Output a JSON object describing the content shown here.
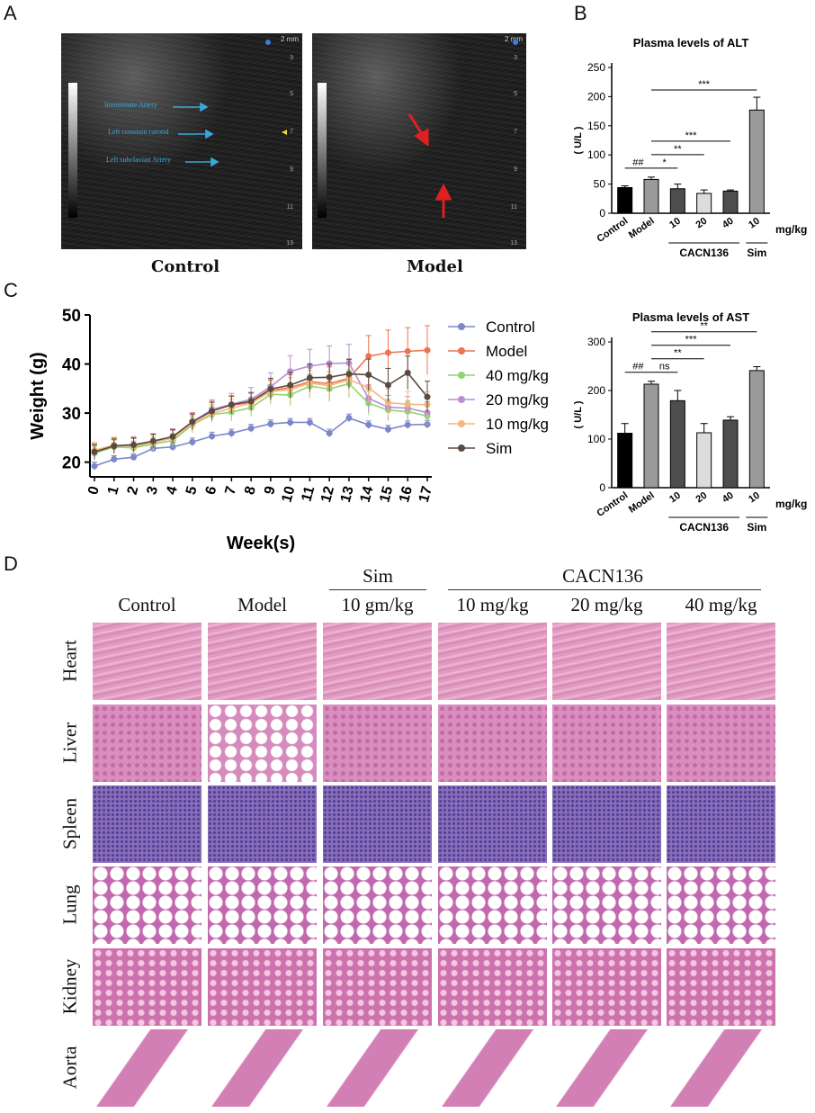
{
  "panel_labels": {
    "a": "A",
    "b": "B",
    "c": "C",
    "d": "D"
  },
  "ultrasound": {
    "scale_top": "2 mm",
    "depth_ticks": [
      "3",
      "5",
      "7",
      "9",
      "11",
      "13"
    ],
    "control": {
      "caption": "Control",
      "annotations": [
        "Innominate Artery",
        "Left common carotid",
        "Left subclavian Artery"
      ]
    },
    "model": {
      "caption": "Model"
    }
  },
  "chart_data": [
    {
      "type": "bar",
      "title": "Plasma levels of ALT",
      "ylabel": "( U/L )",
      "ylim": [
        0,
        250
      ],
      "yticks": [
        0,
        50,
        100,
        150,
        200,
        250
      ],
      "categories": [
        "Control",
        "Model",
        "10",
        "20",
        "40",
        "10"
      ],
      "values": [
        44,
        58,
        42,
        34,
        38,
        177
      ],
      "errors": [
        3,
        4,
        8,
        6,
        2,
        22
      ],
      "colors": [
        "#000000",
        "#9a9a9a",
        "#4d4d4d",
        "#dcdcdc",
        "#4d4d4d",
        "#9a9a9a"
      ],
      "unit_label": "mg/kg",
      "group_labels": [
        "CACN136",
        "Sim"
      ],
      "significance": [
        {
          "from": 0,
          "to": 1,
          "label": "##"
        },
        {
          "from": 1,
          "to": 2,
          "label": "*"
        },
        {
          "from": 1,
          "to": 3,
          "label": "**"
        },
        {
          "from": 1,
          "to": 4,
          "label": "***"
        },
        {
          "from": 1,
          "to": 5,
          "label": "***"
        }
      ]
    },
    {
      "type": "line",
      "ylabel": "Weight (g)",
      "xlabel": "Week(s)",
      "ylim": [
        17,
        50
      ],
      "yticks": [
        20,
        30,
        40,
        50
      ],
      "x": [
        0,
        1,
        2,
        3,
        4,
        5,
        6,
        7,
        8,
        9,
        10,
        11,
        12,
        13,
        14,
        15,
        16,
        17
      ],
      "legend_position": "right",
      "series": [
        {
          "name": "Control",
          "color": "#7b87c9",
          "values": [
            19.2,
            20.6,
            21.0,
            22.8,
            23.1,
            24.1,
            25.3,
            25.9,
            26.9,
            27.8,
            28.1,
            28.1,
            25.9,
            29.0,
            27.6,
            26.7,
            27.6,
            27.7
          ],
          "errors": [
            0.8,
            0.7,
            0.7,
            0.7,
            0.7,
            0.8,
            0.8,
            0.8,
            0.8,
            0.8,
            0.8,
            0.8,
            0.8,
            0.8,
            0.8,
            0.8,
            0.8,
            0.8
          ]
        },
        {
          "name": "Model",
          "color": "#ec7450",
          "values": [
            22.2,
            23.3,
            23.4,
            24.1,
            25.0,
            28.3,
            30.6,
            31.6,
            32.2,
            34.6,
            35.2,
            36.4,
            36.0,
            37.1,
            41.6,
            42.3,
            42.6,
            42.8
          ],
          "errors": [
            1.6,
            1.6,
            1.6,
            1.6,
            1.6,
            1.8,
            1.8,
            1.8,
            1.8,
            2.2,
            2.6,
            3.2,
            3.4,
            3.8,
            4.2,
            4.6,
            4.8,
            5.0
          ]
        },
        {
          "name": "40 mg/kg",
          "color": "#92d472",
          "values": [
            21.8,
            23.1,
            22.9,
            23.7,
            24.4,
            27.6,
            29.7,
            30.2,
            31.1,
            33.8,
            33.7,
            35.5,
            34.9,
            36.0,
            32.0,
            30.6,
            30.3,
            29.4
          ],
          "errors": [
            1.4,
            1.4,
            1.4,
            1.4,
            1.4,
            1.6,
            1.6,
            1.8,
            1.8,
            2.0,
            2.2,
            2.4,
            2.6,
            2.8,
            2.4,
            2.2,
            2.2,
            2.0
          ]
        },
        {
          "name": "20 mg/kg",
          "color": "#b78fd3",
          "values": [
            22.0,
            23.4,
            23.6,
            24.2,
            25.2,
            28.2,
            30.7,
            31.8,
            32.8,
            35.4,
            38.5,
            39.6,
            40.1,
            40.2,
            33.0,
            31.2,
            31.0,
            30.1
          ],
          "errors": [
            1.6,
            1.6,
            1.6,
            1.6,
            1.6,
            1.8,
            2.0,
            2.2,
            2.4,
            2.8,
            3.2,
            3.4,
            3.6,
            3.8,
            2.8,
            2.4,
            2.4,
            2.2
          ]
        },
        {
          "name": "10 mg/kg",
          "color": "#f6b57a",
          "values": [
            22.4,
            23.5,
            23.2,
            24.0,
            24.9,
            27.8,
            29.9,
            31.0,
            32.0,
            34.4,
            34.8,
            36.1,
            35.6,
            36.8,
            35.2,
            32.1,
            31.8,
            31.7
          ],
          "errors": [
            1.6,
            1.6,
            1.6,
            1.6,
            1.6,
            1.8,
            1.8,
            1.8,
            2.0,
            2.2,
            2.4,
            2.6,
            2.8,
            3.0,
            3.0,
            2.8,
            2.6,
            2.6
          ]
        },
        {
          "name": "Sim",
          "color": "#5b4a40",
          "values": [
            22.1,
            23.3,
            23.5,
            24.3,
            25.2,
            28.2,
            30.4,
            31.7,
            32.4,
            34.9,
            35.7,
            37.2,
            37.3,
            38.0,
            37.8,
            35.7,
            38.2,
            33.3
          ],
          "errors": [
            1.4,
            1.4,
            1.4,
            1.4,
            1.4,
            1.6,
            1.8,
            1.8,
            1.8,
            2.2,
            2.6,
            2.8,
            2.8,
            3.0,
            3.2,
            3.4,
            3.4,
            3.2
          ]
        }
      ]
    },
    {
      "type": "bar",
      "title": "Plasma levels of AST",
      "ylabel": "( U/L )",
      "ylim": [
        0,
        300
      ],
      "yticks": [
        0,
        100,
        200,
        300
      ],
      "categories": [
        "Control",
        "Model",
        "10",
        "20",
        "40",
        "10"
      ],
      "values": [
        112,
        213,
        179,
        113,
        139,
        241
      ],
      "errors": [
        20,
        6,
        21,
        19,
        7,
        8
      ],
      "colors": [
        "#000000",
        "#9a9a9a",
        "#4d4d4d",
        "#dcdcdc",
        "#4d4d4d",
        "#9a9a9a"
      ],
      "unit_label": "mg/kg",
      "group_labels": [
        "CACN136",
        "Sim"
      ],
      "significance": [
        {
          "from": 0,
          "to": 1,
          "label": "##"
        },
        {
          "from": 1,
          "to": 2,
          "label": "ns"
        },
        {
          "from": 1,
          "to": 3,
          "label": "**"
        },
        {
          "from": 1,
          "to": 4,
          "label": "***"
        },
        {
          "from": 1,
          "to": 5,
          "label": "**"
        }
      ]
    }
  ],
  "histology": {
    "group_headers": {
      "sim": "Sim",
      "cacn": "CACN136"
    },
    "columns": [
      "Control",
      "Model",
      "10 gm/kg",
      "10 mg/kg",
      "20 mg/kg",
      "40 mg/kg"
    ],
    "rows": [
      "Heart",
      "Liver",
      "Spleen",
      "Lung",
      "Kidney",
      "Aorta"
    ]
  }
}
